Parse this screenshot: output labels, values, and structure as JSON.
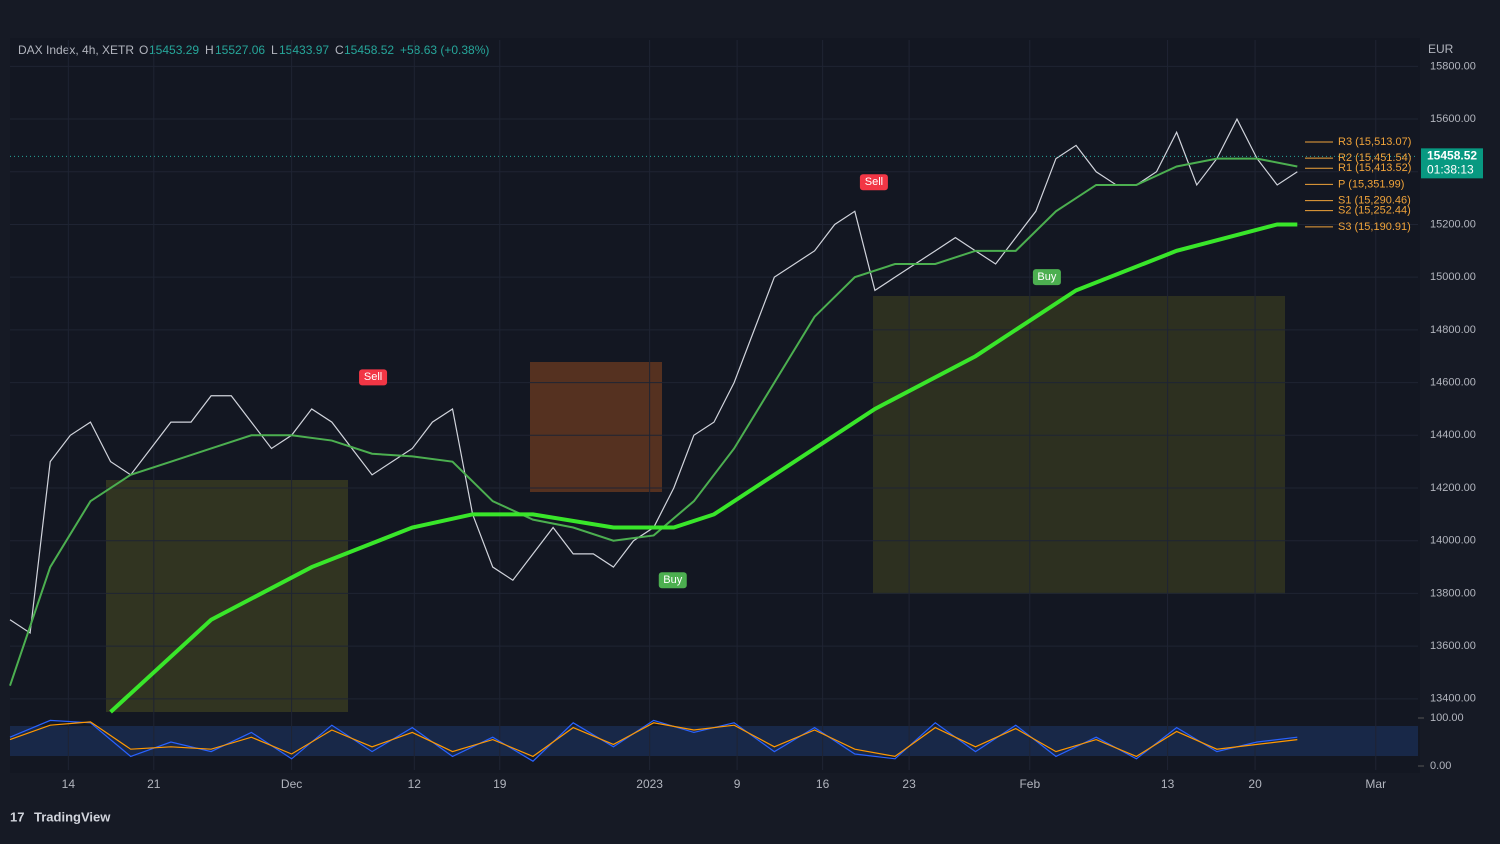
{
  "header": {
    "symbol": "DAX Index, 4h, XETR",
    "open_label": "O",
    "open": "15453.29",
    "high_label": "H",
    "high": "15527.06",
    "low_label": "L",
    "low": "15433.97",
    "close_label": "C",
    "close": "15458.52",
    "change": "+58.63 (+0.38%)",
    "currency": "EUR",
    "brand": "TradingView"
  },
  "chart_data": [
    {
      "type": "line",
      "ylim": [
        13350,
        15900
      ],
      "xlim": [
        0,
        140
      ],
      "yticks": [
        {
          "value": 13400,
          "label": "13400.00"
        },
        {
          "value": 13600,
          "label": "13600.00"
        },
        {
          "value": 13800,
          "label": "13800.00"
        },
        {
          "value": 14000,
          "label": "14000.00"
        },
        {
          "value": 14200,
          "label": "14200.00"
        },
        {
          "value": 14400,
          "label": "14400.00"
        },
        {
          "value": 14600,
          "label": "14600.00"
        },
        {
          "value": 14800,
          "label": "14800.00"
        },
        {
          "value": 15000,
          "label": "15000.00"
        },
        {
          "value": 15200,
          "label": "15200.00"
        },
        {
          "value": 15400,
          "label": "15400.00"
        },
        {
          "value": 15600,
          "label": "15600.00"
        },
        {
          "value": 15800,
          "label": "15800.00"
        }
      ],
      "xticks": [
        {
          "value": 5.8,
          "label": "14"
        },
        {
          "value": 14.3,
          "label": "21"
        },
        {
          "value": 28,
          "label": "Dec"
        },
        {
          "value": 40.2,
          "label": "12"
        },
        {
          "value": 48.7,
          "label": "19"
        },
        {
          "value": 63.6,
          "label": "2023"
        },
        {
          "value": 72.3,
          "label": "9"
        },
        {
          "value": 80.8,
          "label": "16"
        },
        {
          "value": 89.4,
          "label": "23"
        },
        {
          "value": 101.4,
          "label": "Feb"
        },
        {
          "value": 115.1,
          "label": "13"
        },
        {
          "value": 123.8,
          "label": "20"
        },
        {
          "value": 135.8,
          "label": "Mar"
        }
      ],
      "grid": true,
      "series": [
        {
          "name": "Price",
          "color": "#d1d4dc",
          "width": 1.2,
          "x": [
            0,
            2,
            4,
            6,
            8,
            10,
            12,
            14,
            16,
            18,
            20,
            22,
            24,
            26,
            28,
            30,
            32,
            34,
            36,
            38,
            40,
            42,
            44,
            46,
            48,
            50,
            52,
            54,
            56,
            58,
            60,
            62,
            64,
            66,
            68,
            70,
            72,
            74,
            76,
            78,
            80,
            82,
            84,
            86,
            88,
            90,
            92,
            94,
            96,
            98,
            100,
            102,
            104,
            106,
            108,
            110,
            112,
            114,
            116,
            118,
            120,
            122,
            124,
            126,
            128
          ],
          "values": [
            13700,
            13650,
            14300,
            14400,
            14450,
            14300,
            14250,
            14350,
            14450,
            14450,
            14550,
            14550,
            14450,
            14350,
            14400,
            14500,
            14450,
            14350,
            14250,
            14300,
            14350,
            14450,
            14500,
            14100,
            13900,
            13850,
            13950,
            14050,
            13950,
            13950,
            13900,
            14000,
            14050,
            14200,
            14400,
            14450,
            14600,
            14800,
            15000,
            15050,
            15100,
            15200,
            15250,
            14950,
            15000,
            15050,
            15100,
            15150,
            15100,
            15050,
            15150,
            15250,
            15450,
            15500,
            15400,
            15350,
            15350,
            15400,
            15550,
            15350,
            15450,
            15600,
            15450,
            15350,
            15400
          ]
        },
        {
          "name": "EMA fast",
          "color": "#4caf50",
          "width": 2,
          "x": [
            0,
            4,
            8,
            12,
            16,
            20,
            24,
            28,
            32,
            36,
            40,
            44,
            48,
            52,
            56,
            60,
            64,
            68,
            72,
            76,
            80,
            84,
            88,
            92,
            96,
            100,
            104,
            108,
            112,
            116,
            120,
            124,
            128
          ],
          "values": [
            13450,
            13900,
            14150,
            14250,
            14300,
            14350,
            14400,
            14400,
            14380,
            14330,
            14320,
            14300,
            14150,
            14080,
            14050,
            14000,
            14020,
            14150,
            14350,
            14600,
            14850,
            15000,
            15050,
            15050,
            15100,
            15100,
            15250,
            15350,
            15350,
            15420,
            15450,
            15450,
            15420
          ]
        },
        {
          "name": "EMA slow",
          "color": "#39e62a",
          "width": 4,
          "x": [
            10,
            20,
            30,
            40,
            46,
            52,
            60,
            66,
            70,
            76,
            86,
            96,
            106,
            116,
            126,
            128
          ],
          "values": [
            13350,
            13700,
            13900,
            14050,
            14100,
            14100,
            14050,
            14050,
            14100,
            14250,
            14500,
            14700,
            14950,
            15100,
            15200,
            15200
          ]
        }
      ],
      "last_price": 15458.52,
      "last_price_label": "15458.52",
      "countdown": "01:38:13",
      "levels": [
        {
          "value": 15513.07,
          "label": "R3 (15,513.07)"
        },
        {
          "value": 15451.54,
          "label": "R2 (15,451.54)"
        },
        {
          "value": 15413.52,
          "label": "R1 (15,413.52)"
        },
        {
          "value": 15351.99,
          "label": "P (15,351.99)"
        },
        {
          "value": 15290.46,
          "label": "S1 (15,290.46)"
        },
        {
          "value": 15252.44,
          "label": "S2 (15,252.44)"
        },
        {
          "value": 15190.91,
          "label": "S3 (15,190.91)"
        }
      ],
      "annotations": [
        {
          "text": "Sell",
          "x": 36.1,
          "value": 14620,
          "color": "#f23645"
        },
        {
          "text": "Buy",
          "x": 65.9,
          "value": 13850,
          "color": "#4caf50"
        },
        {
          "text": "Sell",
          "x": 85.9,
          "value": 15360,
          "color": "#f23645"
        },
        {
          "text": "Buy",
          "x": 103.1,
          "value": 15000,
          "color": "#4caf50"
        }
      ]
    },
    {
      "type": "oscillator",
      "ylim": [
        0,
        100
      ],
      "yticks": [
        {
          "value": 0,
          "label": "0.00"
        },
        {
          "value": 100,
          "label": "100.00"
        }
      ],
      "series": [
        {
          "name": "K",
          "color": "#2962ff",
          "x": [
            0,
            4,
            8,
            12,
            16,
            20,
            24,
            28,
            32,
            36,
            40,
            44,
            48,
            52,
            56,
            60,
            64,
            68,
            72,
            76,
            80,
            84,
            88,
            92,
            96,
            100,
            104,
            108,
            112,
            116,
            120,
            124,
            128
          ],
          "values": [
            60,
            95,
            90,
            20,
            50,
            30,
            70,
            15,
            85,
            30,
            80,
            20,
            60,
            10,
            90,
            40,
            95,
            70,
            90,
            30,
            80,
            25,
            15,
            90,
            30,
            85,
            20,
            60,
            15,
            80,
            30,
            50,
            60
          ]
        },
        {
          "name": "D",
          "color": "#ff9800",
          "x": [
            0,
            4,
            8,
            12,
            16,
            20,
            24,
            28,
            32,
            36,
            40,
            44,
            48,
            52,
            56,
            60,
            64,
            68,
            72,
            76,
            80,
            84,
            88,
            92,
            96,
            100,
            104,
            108,
            112,
            116,
            120,
            124,
            128
          ],
          "values": [
            55,
            85,
            92,
            35,
            40,
            35,
            60,
            25,
            75,
            40,
            70,
            30,
            55,
            20,
            80,
            45,
            90,
            75,
            85,
            40,
            75,
            35,
            20,
            80,
            40,
            78,
            30,
            55,
            20,
            72,
            35,
            45,
            55
          ]
        }
      ]
    }
  ]
}
